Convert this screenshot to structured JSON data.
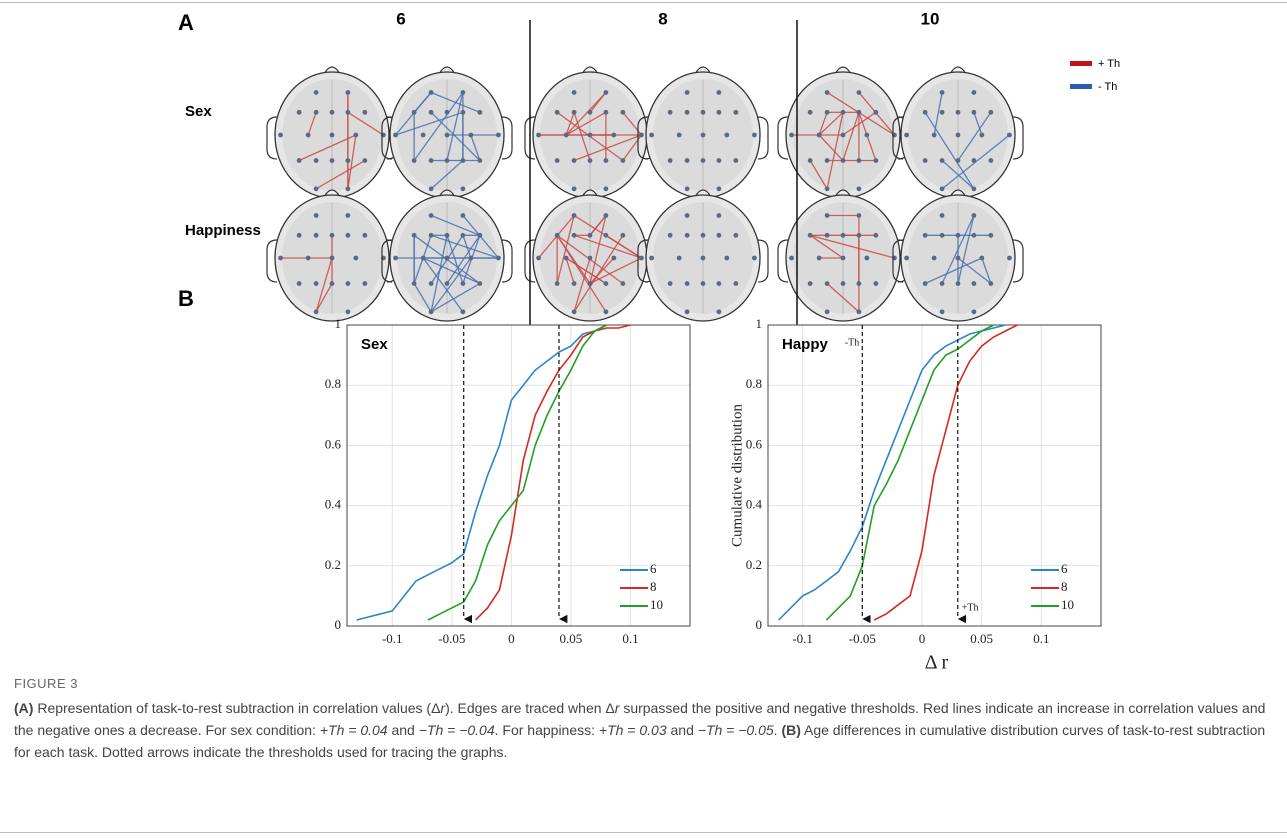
{
  "panel_a": {
    "label": "A",
    "columns": [
      "6",
      "8",
      "10"
    ],
    "rows": [
      "Sex",
      "Happiness"
    ],
    "legend": [
      "+ Th",
      "- Th"
    ]
  },
  "panel_b": {
    "label": "B"
  },
  "chart_data": [
    {
      "type": "line",
      "title": "Sex",
      "x": [
        -0.13,
        -0.12,
        -0.11,
        -0.1,
        -0.09,
        -0.08,
        -0.07,
        -0.06,
        -0.05,
        -0.04,
        -0.03,
        -0.02,
        -0.01,
        0,
        0.01,
        0.02,
        0.03,
        0.04,
        0.05,
        0.06,
        0.07,
        0.08,
        0.09,
        0.1
      ],
      "series": [
        {
          "name": "6",
          "color": "#2a86c9",
          "values": [
            0.02,
            0.03,
            0.04,
            0.05,
            0.1,
            0.15,
            0.17,
            0.19,
            0.21,
            0.24,
            0.38,
            0.5,
            0.6,
            0.75,
            0.8,
            0.85,
            0.88,
            0.91,
            0.93,
            0.97,
            0.98,
            1.0,
            null,
            null
          ]
        },
        {
          "name": "8",
          "color": "#d42a20",
          "values": [
            null,
            null,
            null,
            null,
            null,
            null,
            null,
            null,
            null,
            null,
            0.02,
            0.06,
            0.12,
            0.3,
            0.55,
            0.7,
            0.78,
            0.85,
            0.9,
            0.96,
            0.98,
            0.99,
            0.99,
            1.0
          ]
        },
        {
          "name": "10",
          "color": "#22a022",
          "values": [
            null,
            null,
            null,
            null,
            null,
            null,
            0.02,
            0.04,
            0.06,
            0.08,
            0.15,
            0.27,
            0.35,
            0.4,
            0.45,
            0.6,
            0.7,
            0.78,
            0.85,
            0.93,
            0.98,
            1.0,
            null,
            null
          ]
        }
      ],
      "thresholds": [
        -0.04,
        0.04
      ],
      "xlim": [
        -0.138,
        0.15
      ],
      "ylim": [
        0,
        1
      ],
      "xticks": [
        -0.1,
        -0.05,
        0,
        0.05,
        0.1
      ],
      "yticks": [
        0,
        0.2,
        0.4,
        0.6,
        0.8,
        1
      ],
      "grid": true,
      "legend": "lower right"
    },
    {
      "type": "line",
      "title": "Happy",
      "ylabel": "Cumulative distribution",
      "xlabel": "Δ r",
      "x": [
        -0.13,
        -0.12,
        -0.11,
        -0.1,
        -0.09,
        -0.08,
        -0.07,
        -0.06,
        -0.05,
        -0.04,
        -0.03,
        -0.02,
        -0.01,
        0,
        0.01,
        0.02,
        0.03,
        0.04,
        0.05,
        0.06,
        0.07,
        0.08,
        0.09,
        0.1
      ],
      "series": [
        {
          "name": "6",
          "color": "#2a86c9",
          "values": [
            null,
            0.02,
            0.06,
            0.1,
            0.12,
            0.15,
            0.18,
            0.25,
            0.33,
            0.45,
            0.55,
            0.65,
            0.75,
            0.85,
            0.9,
            0.93,
            0.95,
            0.97,
            0.98,
            0.99,
            1.0,
            null,
            null,
            null
          ]
        },
        {
          "name": "8",
          "color": "#d42a20",
          "values": [
            null,
            null,
            null,
            null,
            null,
            null,
            null,
            null,
            null,
            0.02,
            0.04,
            0.07,
            0.1,
            0.25,
            0.5,
            0.65,
            0.8,
            0.88,
            0.93,
            0.96,
            0.98,
            1.0,
            null,
            null
          ]
        },
        {
          "name": "10",
          "color": "#22a022",
          "values": [
            null,
            null,
            null,
            null,
            null,
            0.02,
            0.06,
            0.1,
            0.2,
            0.4,
            0.47,
            0.55,
            0.65,
            0.75,
            0.85,
            0.9,
            0.92,
            0.95,
            0.98,
            1.0,
            null,
            null,
            null,
            null
          ]
        }
      ],
      "thresholds": [
        -0.05,
        0.03
      ],
      "threshold_labels": [
        "-Th",
        "+Th"
      ],
      "xlim": [
        -0.129,
        0.15
      ],
      "ylim": [
        0,
        1
      ],
      "xticks": [
        -0.1,
        -0.05,
        0,
        0.05,
        0.1
      ],
      "yticks": [
        0,
        0.2,
        0.4,
        0.6,
        0.8,
        1
      ],
      "grid": true,
      "legend": "lower right"
    }
  ],
  "caption": {
    "figure": "FIGURE 3",
    "parts": [
      "(A)",
      " Representation of task-to-rest subtraction in correlation values (Δ",
      "r",
      "). Edges are traced when Δ",
      "r",
      " surpassed the positive and negative thresholds. Red lines indicate an increase in correlation values and the negative ones a decrease. For sex condition: ",
      "+Th = 0.04",
      " and ",
      "−Th = −0.04",
      ". For happiness: ",
      "+Th = 0.03",
      " and ",
      "−Th = −0.05",
      ". ",
      "(B)",
      " Age differences in cumulative distribution curves of task-to-rest subtraction for each task. Dotted arrows indicate the thresholds used for tracing the graphs."
    ]
  }
}
